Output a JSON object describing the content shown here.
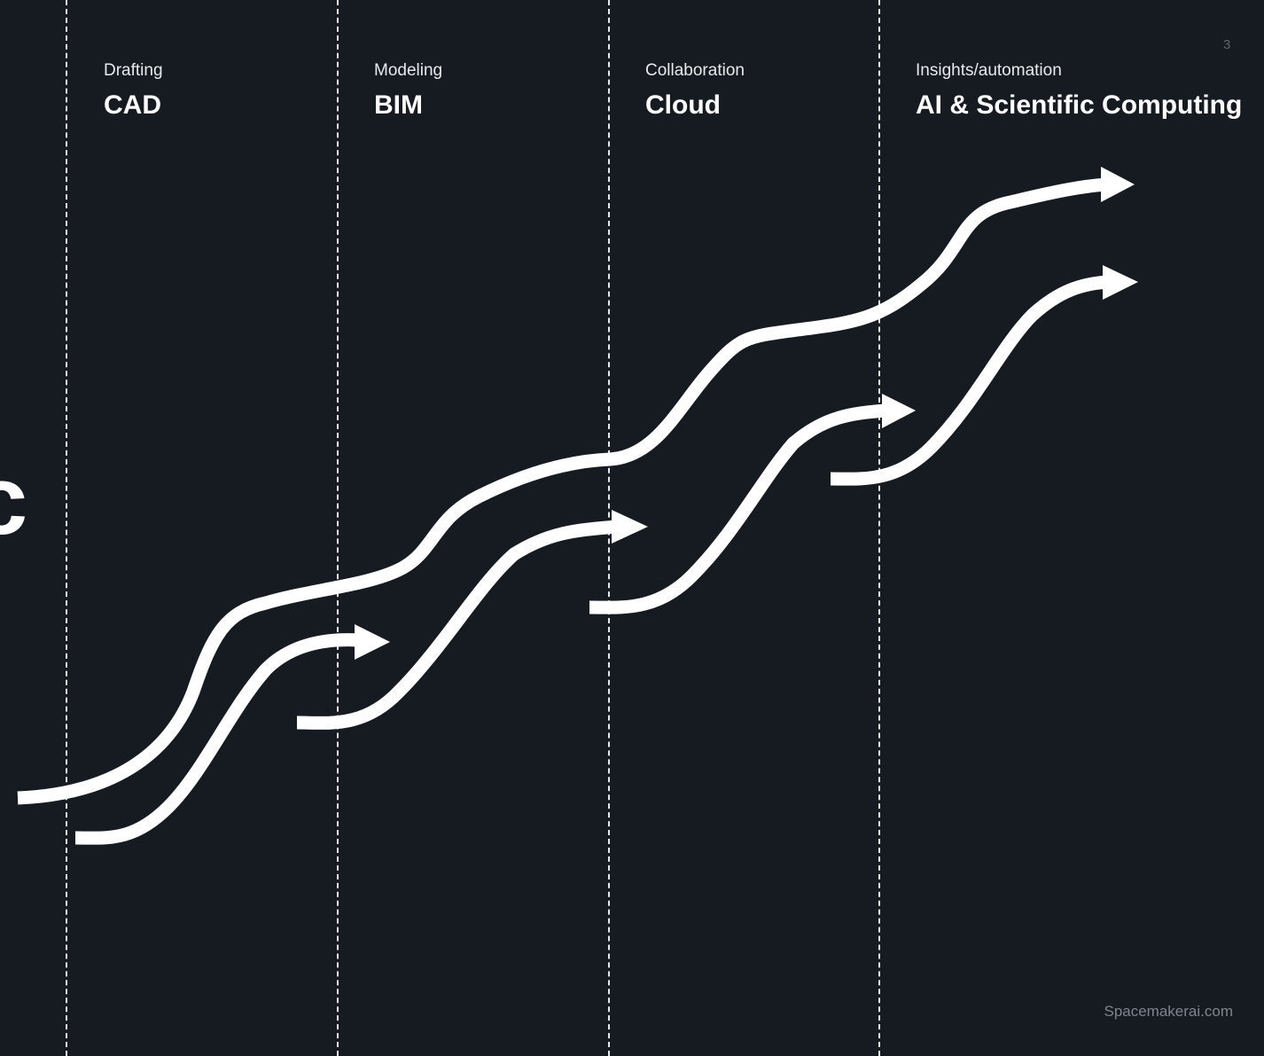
{
  "page_number": "3",
  "phases": [
    {
      "sub": "Drafting",
      "name": "CAD"
    },
    {
      "sub": "Modeling",
      "name": "BIM"
    },
    {
      "sub": "Collaboration",
      "name": "Cloud"
    },
    {
      "sub": "Insights/automation",
      "name": "AI & Scientific Computing"
    }
  ],
  "footer": {
    "site": "Spacemakerai.com"
  },
  "left_edge_glyph": "c",
  "colors": {
    "background": "#161b22",
    "foreground": "#ffffff",
    "divider": "#e6e8ea",
    "muted": "#7d8590"
  }
}
